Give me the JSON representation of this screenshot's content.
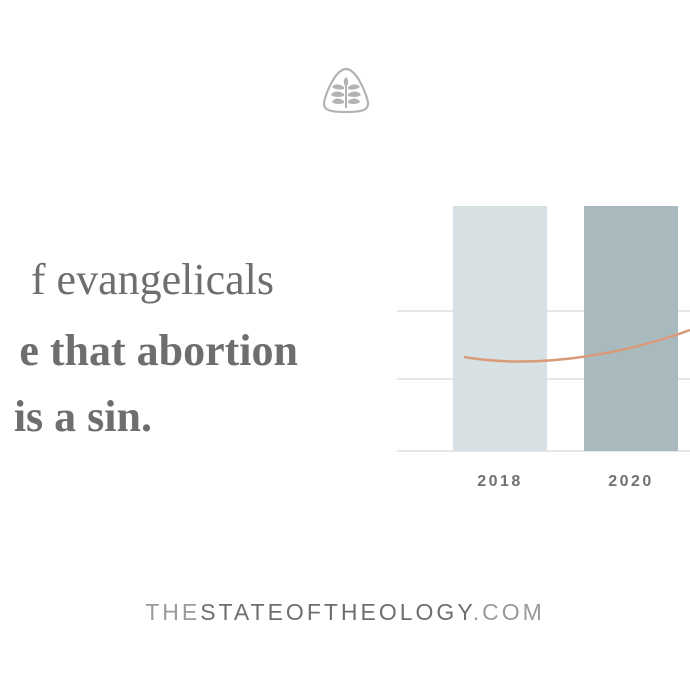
{
  "headline": {
    "line1": "f evangelicals",
    "line2": "e that abortion",
    "line3": "is a sin."
  },
  "chart_data": {
    "type": "bar",
    "categories": [
      "2018",
      "2020"
    ],
    "values": [
      null,
      null
    ],
    "bar_colors": [
      "#d7e1e3",
      "#a9babf"
    ],
    "trend_line_color": "#d99a7a",
    "gridline_color": "#d6d6d6",
    "tick_label_color": "#707070",
    "title": "",
    "xlabel": "",
    "ylabel": "",
    "grid": true
  },
  "footer": {
    "thin_part": "THE",
    "bold_part": "STATEOFTHEOLOGY",
    "suffix": ".COM"
  },
  "logo": {
    "icon": "ligonier-tree-icon",
    "color": "#b3b3b3"
  }
}
